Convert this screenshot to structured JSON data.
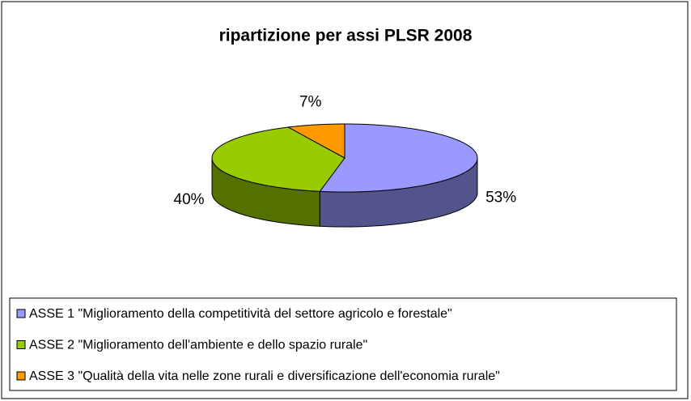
{
  "chart_data": {
    "type": "pie3d",
    "title": "ripartizione per assi PLSR 2008",
    "categories": [
      "ASSE 1 \"Miglioramento della competitività del settore agricolo e forestale\"",
      "ASSE 2 \"Miglioramento dell'ambiente e dello spazio rurale\"",
      "ASSE 3 \"Qualità della vita nelle zone rurali e diversificazione dell'economia rurale\""
    ],
    "values": [
      53,
      40,
      7
    ],
    "value_labels": [
      "53%",
      "40%",
      "7%"
    ],
    "colors": [
      "#9999ff",
      "#99cc00",
      "#ff9900"
    ],
    "legend": "bottom"
  }
}
